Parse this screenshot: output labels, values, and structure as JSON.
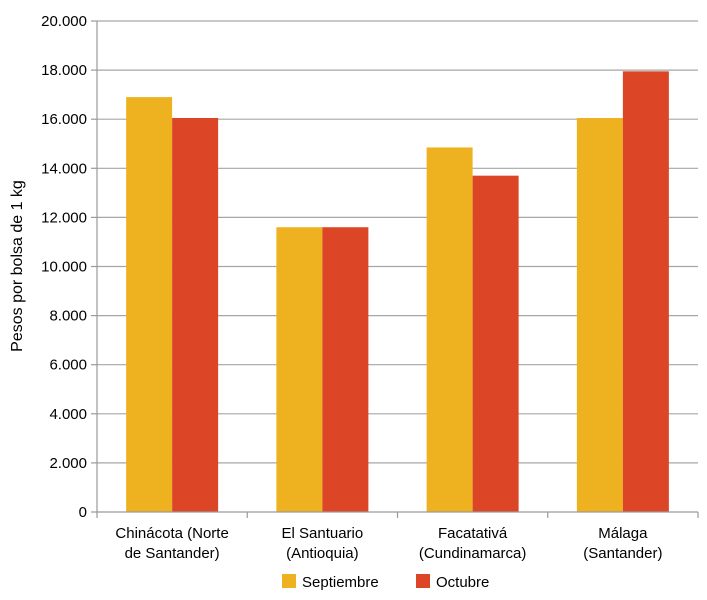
{
  "chart_data": {
    "type": "bar",
    "title": "",
    "xlabel": "",
    "ylabel": "Pesos por bolsa de 1 kg",
    "ylim": [
      0,
      20000
    ],
    "yticks": [
      0,
      2000,
      4000,
      6000,
      8000,
      10000,
      12000,
      14000,
      16000,
      18000,
      20000
    ],
    "ytick_labels": [
      "0",
      "2.000",
      "4.000",
      "6.000",
      "8.000",
      "10.000",
      "12.000",
      "14.000",
      "16.000",
      "18.000",
      "20.000"
    ],
    "grid": "horizontal",
    "legend_position": "bottom",
    "categories": [
      [
        "Chinácota (Norte",
        "de Santander)"
      ],
      [
        "El Santuario",
        "(Antioquia)"
      ],
      [
        "Facatativá",
        "(Cundinamarca)"
      ],
      [
        "Málaga",
        "(Santander)"
      ]
    ],
    "series": [
      {
        "name": "Septiembre",
        "color": "#EEB221",
        "values": [
          16900,
          11600,
          14850,
          16050
        ]
      },
      {
        "name": "Octubre",
        "color": "#DC4627",
        "values": [
          16050,
          11600,
          13700,
          17950
        ]
      }
    ],
    "axis_color": "#9a9a9a",
    "grid_color": "#a6a6a6"
  }
}
